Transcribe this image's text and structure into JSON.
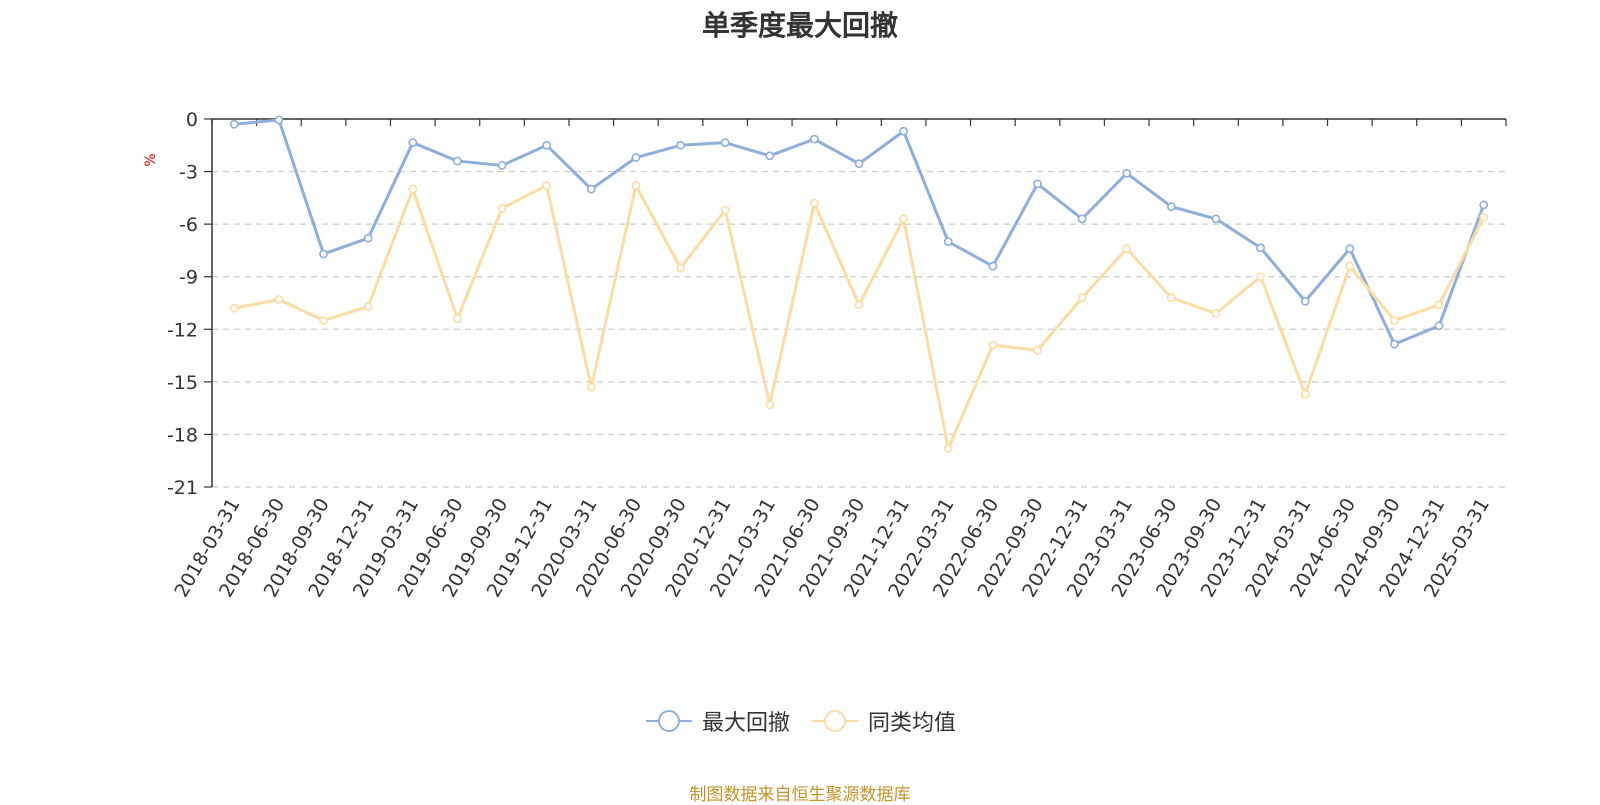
{
  "chart_data": {
    "type": "line",
    "title": "单季度最大回撤",
    "ylabel": "%",
    "ylim": [
      -21,
      0
    ],
    "yticks": [
      0,
      -3,
      -6,
      -9,
      -12,
      -15,
      -18,
      -21
    ],
    "grid": true,
    "legend_position": "bottom",
    "x": [
      "2018-03-31",
      "2018-06-30",
      "2018-09-30",
      "2018-12-31",
      "2019-03-31",
      "2019-06-30",
      "2019-09-30",
      "2019-12-31",
      "2020-03-31",
      "2020-06-30",
      "2020-09-30",
      "2020-12-31",
      "2021-03-31",
      "2021-06-30",
      "2021-09-30",
      "2021-12-31",
      "2022-03-31",
      "2022-06-30",
      "2022-09-30",
      "2022-12-31",
      "2023-03-31",
      "2023-06-30",
      "2023-09-30",
      "2023-12-31",
      "2024-03-31",
      "2024-06-30",
      "2024-09-30",
      "2024-12-31",
      "2025-03-31"
    ],
    "series": [
      {
        "name": "最大回撤",
        "color": "#8eaedb",
        "values": [
          -0.3,
          -0.05,
          -7.7,
          -6.8,
          -1.35,
          -2.4,
          -2.65,
          -1.5,
          -4.0,
          -2.2,
          -1.5,
          -1.35,
          -2.1,
          -1.15,
          -2.55,
          -0.7,
          -7.0,
          -8.4,
          -3.7,
          -5.7,
          -3.1,
          -5.0,
          -5.7,
          -7.35,
          -10.4,
          -7.4,
          -12.85,
          -11.8,
          -4.9
        ]
      },
      {
        "name": "同类均值",
        "color": "#fcdca4",
        "values": [
          -10.8,
          -10.3,
          -11.5,
          -10.7,
          -4.0,
          -11.4,
          -5.1,
          -3.8,
          -15.3,
          -3.8,
          -8.5,
          -5.2,
          -16.3,
          -4.8,
          -10.6,
          -5.7,
          -18.8,
          -12.9,
          -13.2,
          -10.2,
          -7.4,
          -10.2,
          -11.1,
          -9.0,
          -15.7,
          -8.4,
          -11.5,
          -10.6,
          -5.6
        ]
      }
    ],
    "source_note": "制图数据来自恒生聚源数据库"
  }
}
